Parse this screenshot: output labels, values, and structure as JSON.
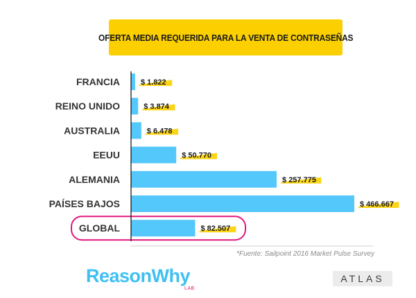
{
  "title": "OFERTA MEDIA REQUERIDA PARA LA VENTA DE CONTRASEÑAS",
  "source": "*Fuente: Sailpoint 2016 Market Pulse Survey",
  "brand": {
    "name": "ReasonWhy",
    "sub": "LAB"
  },
  "partner_logo": "ATLAS",
  "colors": {
    "bar": "#55c8fb",
    "highlight": "#fcd000",
    "accent": "#e0177a",
    "title_bg": "#fcd000"
  },
  "chart_data": {
    "type": "bar",
    "orientation": "horizontal",
    "title": "OFERTA MEDIA REQUERIDA PARA LA VENTA DE CONTRASEÑAS",
    "categories": [
      "FRANCIA",
      "REINO UNIDO",
      "AUSTRALIA",
      "EEUU",
      "ALEMANIA",
      "PAÍSES BAJOS",
      "GLOBAL"
    ],
    "values": [
      1822,
      3874,
      6478,
      50770,
      257775,
      466667,
      82507
    ],
    "value_labels": [
      "$ 1.822",
      "$ 3.874",
      "$ 6.478",
      "$ 50.770",
      "$ 257.775",
      "$ 466.667",
      "$ 82.507"
    ],
    "highlighted_category": "GLOBAL",
    "grid": false,
    "legend": "none",
    "note": "bar lengths not proportional in original"
  }
}
